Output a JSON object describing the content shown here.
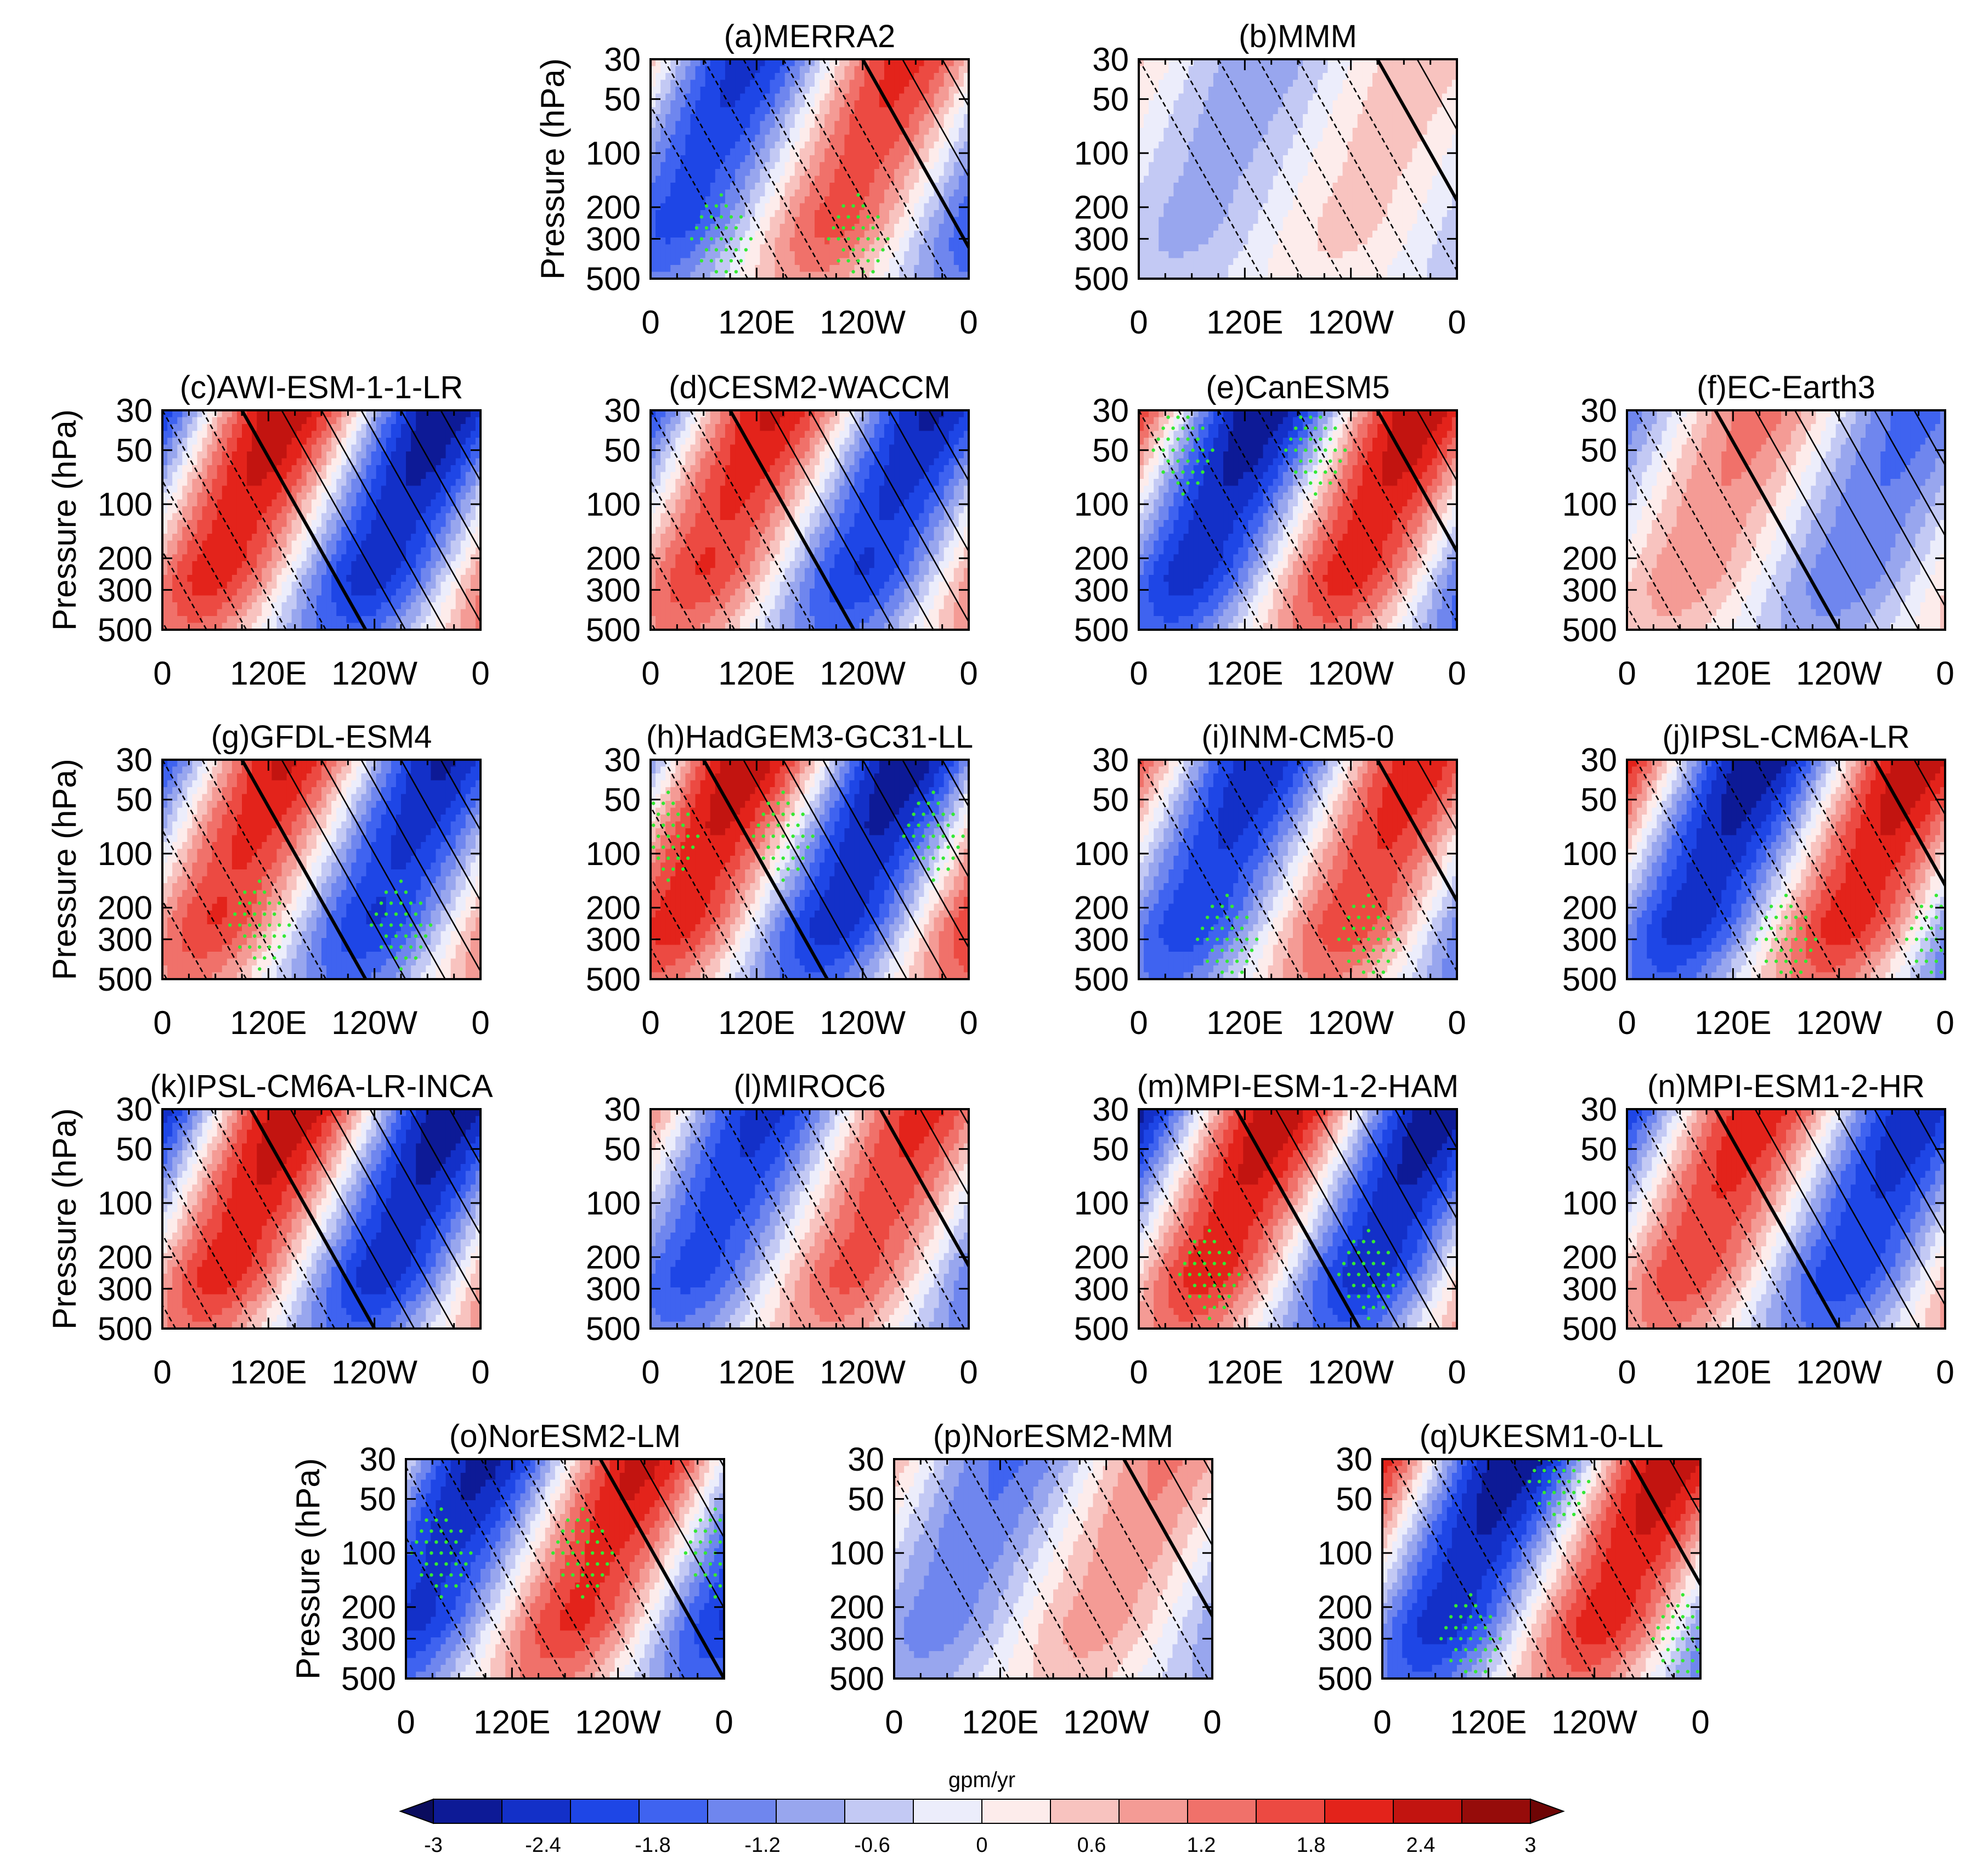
{
  "chart_data": {
    "type": "contour",
    "description_axes": "longitude-pressure cross sections",
    "x_ticks": [
      "0",
      "120E",
      "120W",
      "0"
    ],
    "y_ticks": [
      "30",
      "50",
      "100",
      "200",
      "300",
      "500"
    ],
    "ylabel": "Pressure (hPa)",
    "ylim": [
      500,
      30
    ],
    "xlim_deg": [
      0,
      360
    ],
    "panels": [
      {
        "title": "(a)MERRA2",
        "amp": 2.4,
        "phase": 180,
        "stip": [
          [
            80,
            300
          ],
          [
            235,
            300
          ]
        ]
      },
      {
        "title": "(b)MMM",
        "amp": 0.9,
        "phase": 210,
        "stip": []
      },
      {
        "title": "(c)AWI-ESM-1-1-LR",
        "amp": 3.0,
        "phase": 30,
        "stip": []
      },
      {
        "title": "(d)CESM2-WACCM",
        "amp": 2.7,
        "phase": 30,
        "stip": []
      },
      {
        "title": "(e)CanESM5",
        "amp": 3.0,
        "phase": 210,
        "stip": [
          [
            50,
            50
          ],
          [
            200,
            50
          ]
        ]
      },
      {
        "title": "(f)EC-Earth3",
        "amp": 1.6,
        "phase": 40,
        "stip": []
      },
      {
        "title": "(g)GFDL-ESM4",
        "amp": 2.7,
        "phase": 30,
        "stip": [
          [
            110,
            250
          ],
          [
            270,
            250
          ]
        ]
      },
      {
        "title": "(h)HadGEM3-GC31-LL",
        "amp": 3.0,
        "phase": 0,
        "stip": [
          [
            20,
            80
          ],
          [
            150,
            80
          ],
          [
            320,
            80
          ]
        ]
      },
      {
        "title": "(i)INM-CM5-0",
        "amp": 2.6,
        "phase": 210,
        "stip": [
          [
            100,
            300
          ],
          [
            260,
            300
          ]
        ]
      },
      {
        "title": "(j)IPSL-CM6A-LR",
        "amp": 3.0,
        "phase": 220,
        "stip": [
          [
            180,
            300
          ],
          [
            350,
            300
          ]
        ]
      },
      {
        "title": "(k)IPSL-CM6A-LR-INCA",
        "amp": 3.0,
        "phase": 40,
        "stip": []
      },
      {
        "title": "(l)MIROC6",
        "amp": 2.4,
        "phase": 200,
        "stip": []
      },
      {
        "title": "(m)MPI-ESM-1-2-HAM",
        "amp": 3.0,
        "phase": 50,
        "stip": [
          [
            80,
            250
          ],
          [
            260,
            250
          ]
        ]
      },
      {
        "title": "(n)MPI-ESM1-2-HR",
        "amp": 2.6,
        "phase": 40,
        "stip": []
      },
      {
        "title": "(o)NorESM2-LM",
        "amp": 2.8,
        "phase": 160,
        "stip": [
          [
            40,
            100
          ],
          [
            200,
            100
          ],
          [
            350,
            100
          ]
        ]
      },
      {
        "title": "(p)NorESM2-MM",
        "amp": 1.5,
        "phase": 200,
        "stip": []
      },
      {
        "title": "(q)UKESM1-0-LL",
        "amp": 3.0,
        "phase": 220,
        "stip": [
          [
            100,
            300
          ],
          [
            200,
            40
          ],
          [
            340,
            300
          ]
        ]
      }
    ],
    "colorbar": {
      "unit": "gpm/yr",
      "ticks": [
        "-3",
        "-2.4",
        "-1.8",
        "-1.2",
        "-0.6",
        "0",
        "0.6",
        "1.2",
        "1.8",
        "2.4",
        "3"
      ],
      "levels": [
        -3,
        -2.6,
        -2.2,
        -1.8,
        -1.4,
        -1.0,
        -0.6,
        -0.2,
        0.2,
        0.6,
        1.0,
        1.4,
        1.8,
        2.2,
        2.6,
        3.0
      ],
      "colors": [
        "#0a0c5e",
        "#0d1a96",
        "#1330c8",
        "#1e46e6",
        "#3f63f0",
        "#6f86ee",
        "#98a6ee",
        "#c3c9f4",
        "#ecedfb",
        "#fdeceb",
        "#f8c3bf",
        "#f49b95",
        "#f0716a",
        "#ec4a42",
        "#e3231b",
        "#c21410",
        "#960c0a",
        "#6e0505"
      ]
    }
  }
}
